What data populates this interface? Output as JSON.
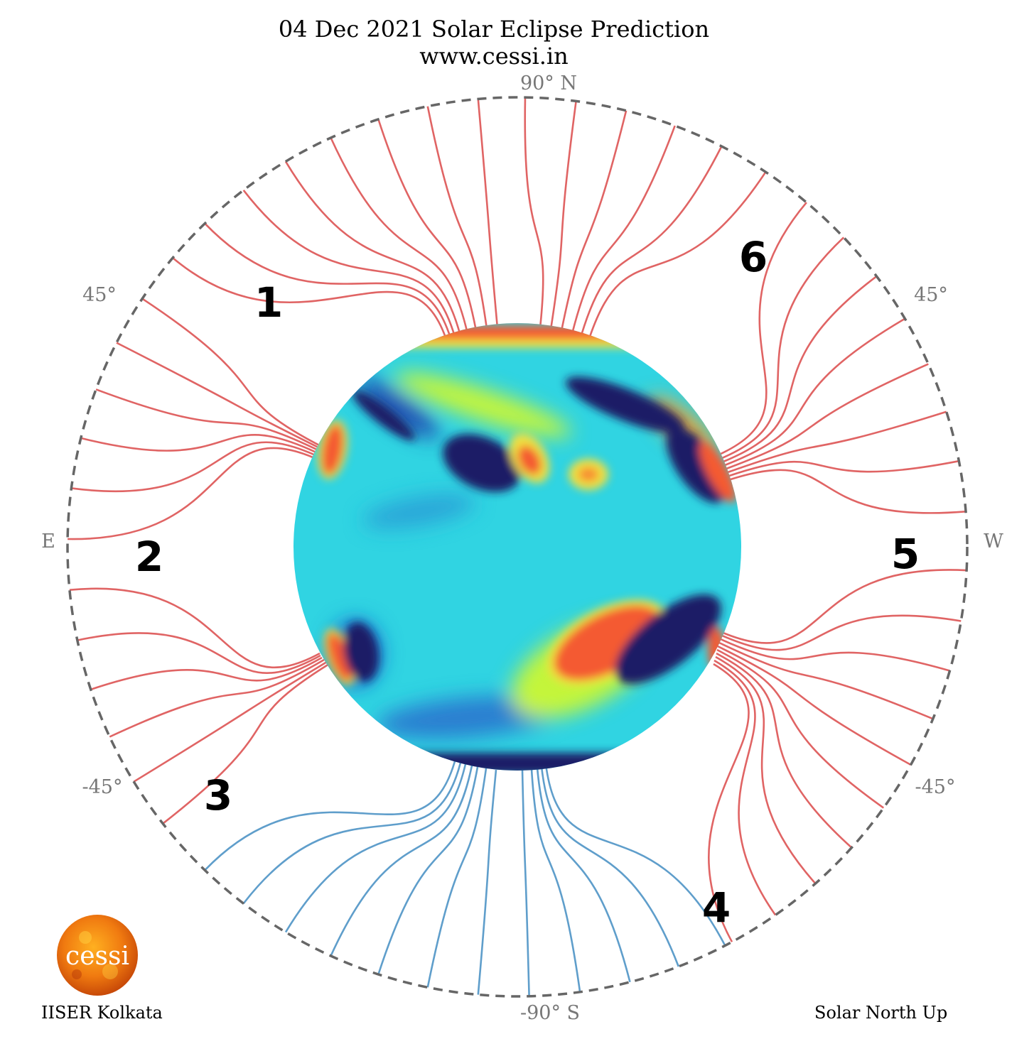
{
  "title": {
    "line1": "04 Dec 2021 Solar Eclipse Prediction",
    "line2": "www.cessi.in"
  },
  "axis_labels": {
    "north": "90° N",
    "south": "-90° S",
    "east": "E",
    "west": "W",
    "upper_left": "45°",
    "upper_right": "45°",
    "lower_left": "-45°",
    "lower_right": "-45°"
  },
  "region_labels": [
    "1",
    "2",
    "3",
    "4",
    "5",
    "6"
  ],
  "logo": {
    "text": "cessi"
  },
  "footer": {
    "left": "IISER Kolkata",
    "right": "Solar North Up"
  },
  "colors": {
    "open_field_positive": "#e06464",
    "open_field_negative": "#5f9ecb",
    "boundary": "#666666",
    "disk_base": "#30d4e2",
    "strong_positive": "#f45a30",
    "strong_negative": "#1a1a66"
  }
}
